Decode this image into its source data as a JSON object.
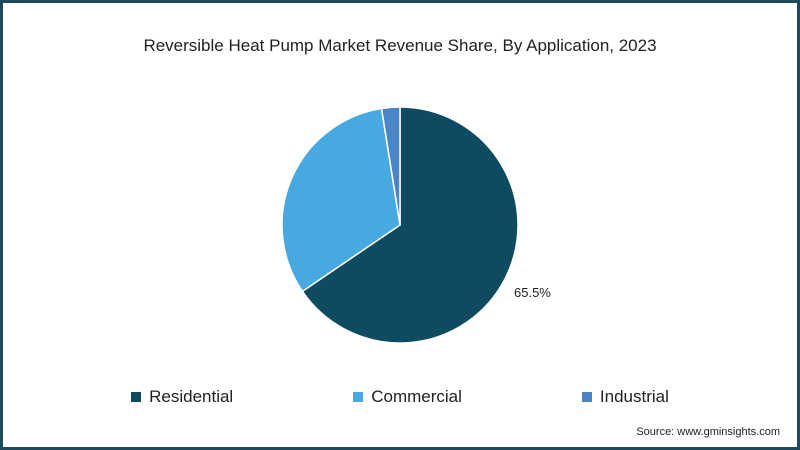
{
  "chart_data": {
    "type": "pie",
    "title": "Reversible Heat Pump Market Revenue Share, By Application, 2023",
    "categories": [
      "Residential",
      "Commercial",
      "Industrial"
    ],
    "values": [
      65.5,
      32.0,
      2.5
    ],
    "colors": [
      "#0e4b60",
      "#47a9df",
      "#4a86c5"
    ],
    "data_labels": [
      "65.5%",
      "",
      ""
    ],
    "legend_position": "bottom"
  },
  "source": "Source: www.gminsights.com",
  "frame_color": "#1d4b5b"
}
